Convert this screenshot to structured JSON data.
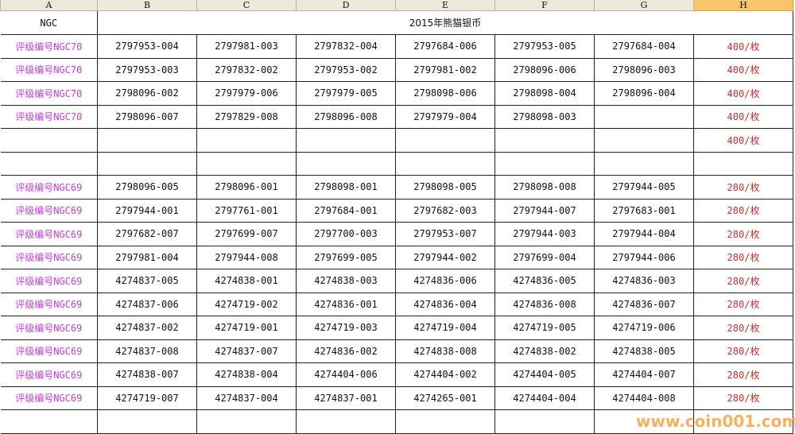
{
  "columns": [
    "A",
    "B",
    "C",
    "D",
    "E",
    "F",
    "G",
    "H"
  ],
  "selected_column": "H",
  "header_row": {
    "a": "NGC",
    "title": "2015年熊猫银币"
  },
  "rows": [
    {
      "a": "评级编号NGC70",
      "cells": [
        "2797953-004",
        "2797981-003",
        "2797832-004",
        "2797684-006",
        "2797953-005",
        "2797684-004"
      ],
      "h": "400/枚"
    },
    {
      "a": "评级编号NGC70",
      "cells": [
        "2797953-003",
        "2797832-002",
        "2797953-002",
        "2797981-002",
        "2798096-006",
        "2798096-003"
      ],
      "h": "400/枚"
    },
    {
      "a": "评级编号NGC70",
      "cells": [
        "2798096-002",
        "2797979-006",
        "2797979-005",
        "2798098-006",
        "2798098-004",
        "2798096-004"
      ],
      "h": "400/枚"
    },
    {
      "a": "评级编号NGC70",
      "cells": [
        "2798096-007",
        "2797829-008",
        "2798096-008",
        "2797979-004",
        "2798098-003",
        ""
      ],
      "h": "400/枚"
    },
    {
      "a": "",
      "cells": [
        "",
        "",
        "",
        "",
        "",
        ""
      ],
      "h": "400/枚"
    },
    {
      "a": "",
      "cells": [
        "",
        "",
        "",
        "",
        "",
        ""
      ],
      "h": ""
    },
    {
      "a": "评级编号NGC69",
      "cells": [
        "2798096-005",
        "2798096-001",
        "2798098-001",
        "2798098-005",
        "2798098-008",
        "2797944-005"
      ],
      "h": "280/枚"
    },
    {
      "a": "评级编号NGC69",
      "cells": [
        "2797944-001",
        "2797761-001",
        "2797684-001",
        "2797682-003",
        "2797944-007",
        "2797683-001"
      ],
      "h": "280/枚"
    },
    {
      "a": "评级编号NGC69",
      "cells": [
        "2797682-007",
        "2797699-007",
        "2797700-003",
        "2797953-007",
        "2797944-003",
        "2797944-004"
      ],
      "h": "280/枚"
    },
    {
      "a": "评级编号NGC69",
      "cells": [
        "2797981-004",
        "2797944-008",
        "2797699-005",
        "2797944-002",
        "2797699-004",
        "2797944-006"
      ],
      "h": "280/枚"
    },
    {
      "a": "评级编号NGC69",
      "cells": [
        "4274837-005",
        "4274838-001",
        "4274838-003",
        "4274836-006",
        "4274836-005",
        "4274836-003"
      ],
      "h": "280/枚"
    },
    {
      "a": "评级编号NGC69",
      "cells": [
        "4274837-006",
        "4274719-002",
        "4274836-001",
        "4274836-004",
        "4274836-008",
        "4274836-007"
      ],
      "h": "280/枚"
    },
    {
      "a": "评级编号NGC69",
      "cells": [
        "4274837-002",
        "4274719-001",
        "4274719-003",
        "4274719-004",
        "4274719-005",
        "4274719-006"
      ],
      "h": "280/枚"
    },
    {
      "a": "评级编号NGC69",
      "cells": [
        "4274837-008",
        "4274837-007",
        "4274836-002",
        "4274838-008",
        "4274838-002",
        "4274838-005"
      ],
      "h": "280/枚"
    },
    {
      "a": "评级编号NGC69",
      "cells": [
        "4274838-007",
        "4274838-004",
        "4274404-006",
        "4274404-002",
        "4274404-005",
        "4274404-007"
      ],
      "h": "280/枚"
    },
    {
      "a": "评级编号NGC69",
      "cells": [
        "4274719-007",
        "4274837-004",
        "4274837-001",
        "4274265-001",
        "4274404-004",
        "4274404-008"
      ],
      "h": "280/枚"
    },
    {
      "a": "",
      "cells": [
        "",
        "",
        "",
        "",
        "",
        ""
      ],
      "h": ""
    }
  ],
  "watermark": "www.coin001.com",
  "colors": {
    "grade_label": "#c040d0",
    "price": "#c03030",
    "selected_header": "#f8c46c",
    "watermark": "#f7b060"
  }
}
